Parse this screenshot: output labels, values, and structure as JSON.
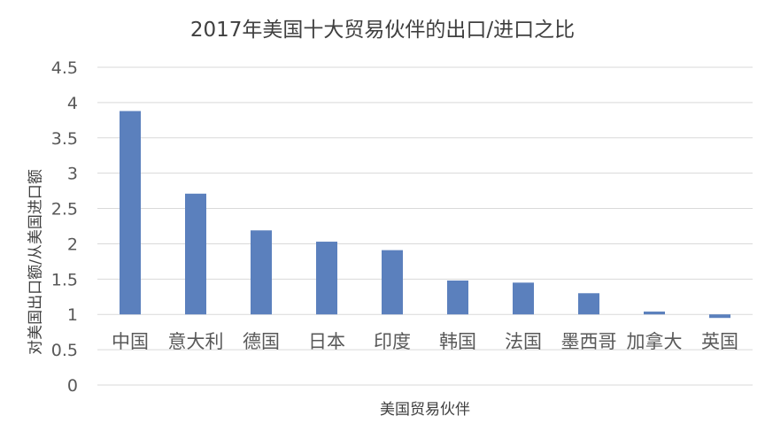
{
  "chart_data": {
    "type": "bar",
    "title": "2017年美国十大贸易伙伴的出口/进口之比",
    "xlabel": "美国贸易伙伴",
    "ylabel": "对美国出口额/从美国进口额",
    "categories": [
      "中国",
      "意大利",
      "德国",
      "日本",
      "印度",
      "韩国",
      "法国",
      "墨西哥",
      "加拿大",
      "英国"
    ],
    "values": [
      3.88,
      2.71,
      2.19,
      2.03,
      1.91,
      1.48,
      1.45,
      1.3,
      1.04,
      0.95
    ],
    "baseline": 1,
    "ylim": [
      0,
      4.5
    ],
    "yticks": [
      0,
      0.5,
      1,
      1.5,
      2,
      2.5,
      3,
      3.5,
      4,
      4.5
    ],
    "ytick_labels": [
      "0",
      "0.5",
      "1",
      "1.5",
      "2",
      "2.5",
      "3",
      "3.5",
      "4",
      "4.5"
    ],
    "grid": true,
    "bar_color": "#5b80bd",
    "grid_color": "#d9d9d9"
  }
}
